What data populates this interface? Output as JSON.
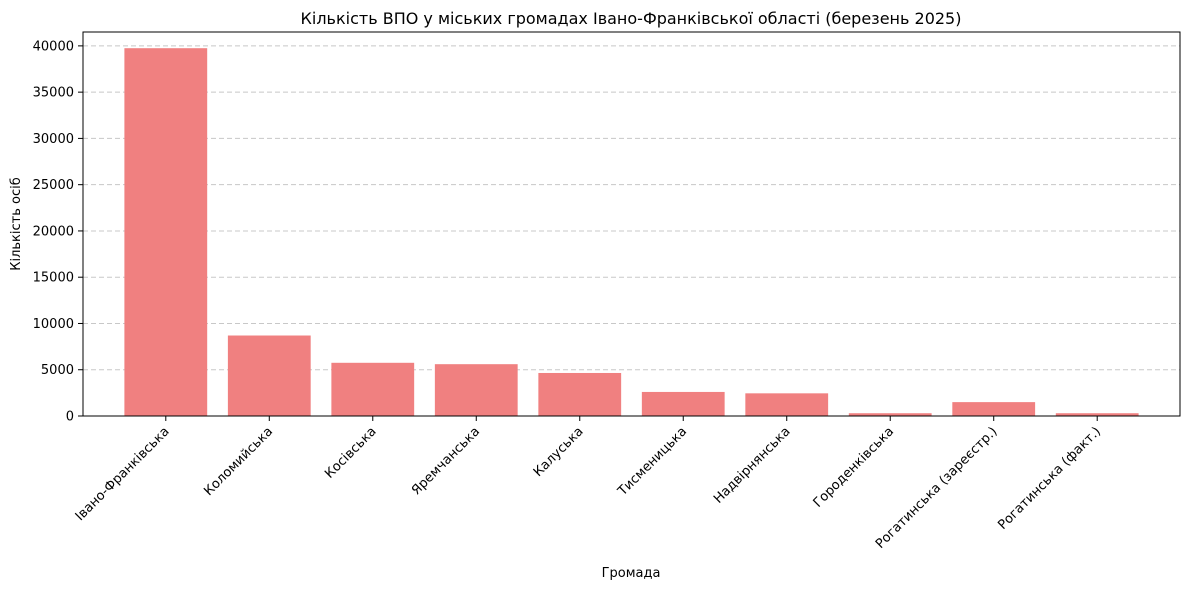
{
  "chart_data": {
    "type": "bar",
    "title": "Кількість ВПО у міських громадах Івано-Франківської області (березень 2025)",
    "xlabel": "Громада",
    "ylabel": "Кількість осіб",
    "categories": [
      "Івано-Франківська",
      "Коломийська",
      "Косівська",
      "Яремчанська",
      "Калуська",
      "Тисменицька",
      "Надвірнянська",
      "Городенківська",
      "Рогатинська (зареєстр.)",
      "Рогатинська (факт.)"
    ],
    "values": [
      39750,
      8700,
      5750,
      5600,
      4650,
      2600,
      2450,
      300,
      1500,
      300
    ],
    "ylim": [
      0,
      41500
    ],
    "yticks": [
      0,
      5000,
      10000,
      15000,
      20000,
      25000,
      30000,
      35000,
      40000
    ],
    "grid": "y-dashed",
    "bar_color": "#f08080"
  }
}
